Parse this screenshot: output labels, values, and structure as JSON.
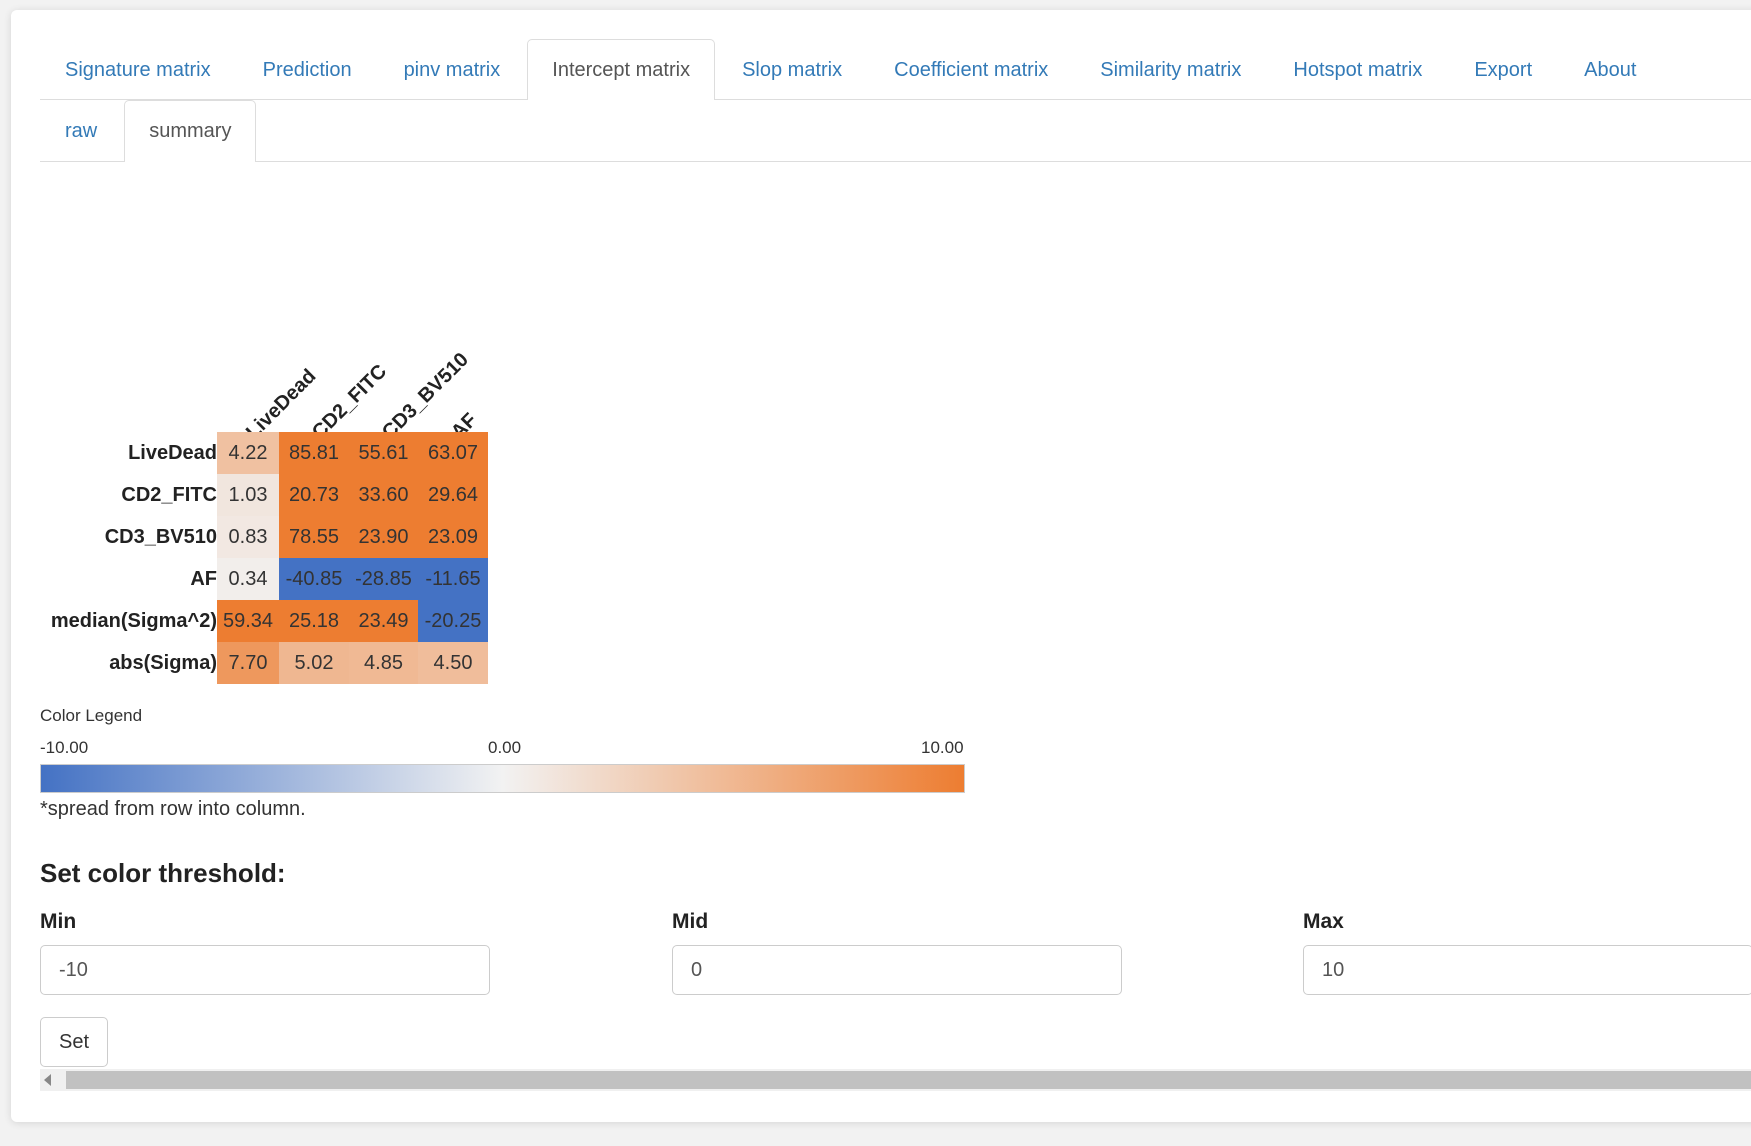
{
  "tabs": [
    "Signature matrix",
    "Prediction",
    "pinv matrix",
    "Intercept matrix",
    "Slop matrix",
    "Coefficient matrix",
    "Similarity matrix",
    "Hotspot matrix",
    "Export",
    "About"
  ],
  "active_tab": "Intercept matrix",
  "subtabs": [
    "raw",
    "summary"
  ],
  "active_subtab": "summary",
  "matrix": {
    "columns": [
      "LiveDead",
      "CD2_FITC",
      "CD3_BV510",
      "AF"
    ],
    "rows": [
      {
        "label": "LiveDead",
        "values": [
          "4.22",
          "85.81",
          "55.61",
          "63.07"
        ]
      },
      {
        "label": "CD2_FITC",
        "values": [
          "1.03",
          "20.73",
          "33.60",
          "29.64"
        ]
      },
      {
        "label": "CD3_BV510",
        "values": [
          "0.83",
          "78.55",
          "23.90",
          "23.09"
        ]
      },
      {
        "label": "AF",
        "values": [
          "0.34",
          "-40.85",
          "-28.85",
          "-11.65"
        ]
      },
      {
        "label": "median(Sigma^2)",
        "values": [
          "59.34",
          "25.18",
          "23.49",
          "-20.25"
        ]
      },
      {
        "label": "abs(Sigma)",
        "values": [
          "7.70",
          "5.02",
          "4.85",
          "4.50"
        ]
      }
    ]
  },
  "legend": {
    "title": "Color Legend",
    "min_label": "-10.00",
    "mid_label": "0.00",
    "max_label": "10.00",
    "low_color": "#4472c4",
    "mid_color": "#f2f2f2",
    "high_color": "#ed7d31",
    "note": "*spread from row into column."
  },
  "threshold": {
    "heading": "Set color threshold:",
    "min_label": "Min",
    "min_value": "-10",
    "mid_label": "Mid",
    "mid_value": "0",
    "max_label": "Max",
    "max_value": "10",
    "button_label": "Set"
  }
}
